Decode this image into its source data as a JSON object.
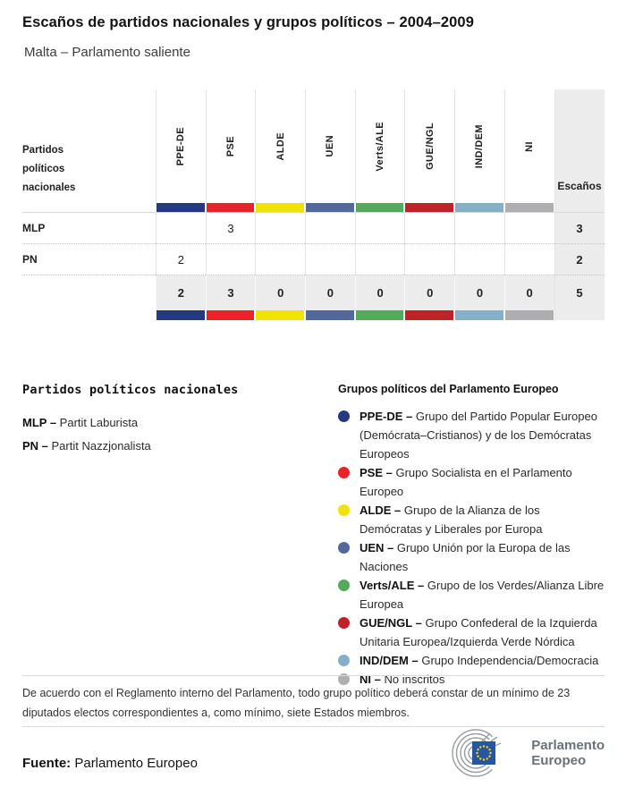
{
  "header": {
    "title": "Escaños de partidos nacionales y grupos políticos – 2004–2009",
    "subtitle": "Malta – Parlamento saliente"
  },
  "table": {
    "corner_label": "Partidos políticos nacionales",
    "seats_label": "Escaños",
    "groups": [
      {
        "code": "PPE-DE",
        "color": "#24397f"
      },
      {
        "code": "PSE",
        "color": "#e8242a"
      },
      {
        "code": "ALDE",
        "color": "#f0e207"
      },
      {
        "code": "UEN",
        "color": "#52689b"
      },
      {
        "code": "Verts/ALE",
        "color": "#55a85c"
      },
      {
        "code": "GUE/NGL",
        "color": "#c0222a"
      },
      {
        "code": "IND/DEM",
        "color": "#85aec9"
      },
      {
        "code": "NI",
        "color": "#aeaeb0"
      }
    ],
    "rows": [
      {
        "party": "MLP",
        "values": [
          "",
          "3",
          "",
          "",
          "",
          "",
          "",
          ""
        ],
        "seats": "3"
      },
      {
        "party": "PN",
        "values": [
          "2",
          "",
          "",
          "",
          "",
          "",
          "",
          ""
        ],
        "seats": "2"
      }
    ],
    "totals": {
      "values": [
        "2",
        "3",
        "0",
        "0",
        "0",
        "0",
        "0",
        "0"
      ],
      "seats": "5"
    }
  },
  "chart_data": {
    "type": "table",
    "title": "Escaños de partidos nacionales y grupos políticos – 2004–2009",
    "subtitle": "Malta – Parlamento saliente",
    "columns": [
      "PPE-DE",
      "PSE",
      "ALDE",
      "UEN",
      "Verts/ALE",
      "GUE/NGL",
      "IND/DEM",
      "NI",
      "Escaños"
    ],
    "rows": [
      {
        "party": "MLP",
        "values": [
          null,
          3,
          null,
          null,
          null,
          null,
          null,
          null
        ],
        "seats": 3
      },
      {
        "party": "PN",
        "values": [
          2,
          null,
          null,
          null,
          null,
          null,
          null,
          null
        ],
        "seats": 2
      }
    ],
    "totals": {
      "values": [
        2,
        3,
        0,
        0,
        0,
        0,
        0,
        0
      ],
      "seats": 5
    }
  },
  "legend_parties": {
    "heading": "Partidos políticos nacionales",
    "items": [
      {
        "code": "MLP",
        "name": "Partit Laburista"
      },
      {
        "code": "PN",
        "name": "Partit Nazzjonalista"
      }
    ]
  },
  "legend_groups": {
    "heading": "Grupos políticos del Parlamento Europeo",
    "items": [
      {
        "code": "PPE-DE",
        "color": "#24397f",
        "description": "Grupo del Partido Popular Europeo (Demócrata–Cristianos) y de los Demócratas Europeos"
      },
      {
        "code": "PSE",
        "color": "#e8242a",
        "description": "Grupo Socialista en el Parlamento Europeo"
      },
      {
        "code": "ALDE",
        "color": "#f0e207",
        "description": "Grupo de la Alianza de los Demócratas y Liberales por Europa"
      },
      {
        "code": "UEN",
        "color": "#52689b",
        "description": "Grupo Unión por la Europa de las Naciones"
      },
      {
        "code": "Verts/ALE",
        "color": "#55a85c",
        "description": "Grupo de los Verdes/Alianza Libre Europea"
      },
      {
        "code": "GUE/NGL",
        "color": "#c0222a",
        "description": "Grupo Confederal de la Izquierda Unitaria Europea/Izquierda Verde Nórdica"
      },
      {
        "code": "IND/DEM",
        "color": "#85aec9",
        "description": "Grupo Independencia/Democracia"
      },
      {
        "code": "NI",
        "color": "#aeaeb0",
        "description": "No inscritos"
      }
    ]
  },
  "footnote": "De acuerdo con el Reglamento interno del Parlamento, todo grupo político deberá constar de un mínimo de 23 diputados electos correspondientes a, como mínimo, siete Estados miembros.",
  "source": {
    "label": "Fuente:",
    "value": "Parlamento Europeo"
  },
  "logo": {
    "line1": "Parlamento",
    "line2": "Europeo",
    "flag_blue": "#2655a2",
    "star_yellow": "#ffd617",
    "arc_gray": "#9aa0a6"
  }
}
